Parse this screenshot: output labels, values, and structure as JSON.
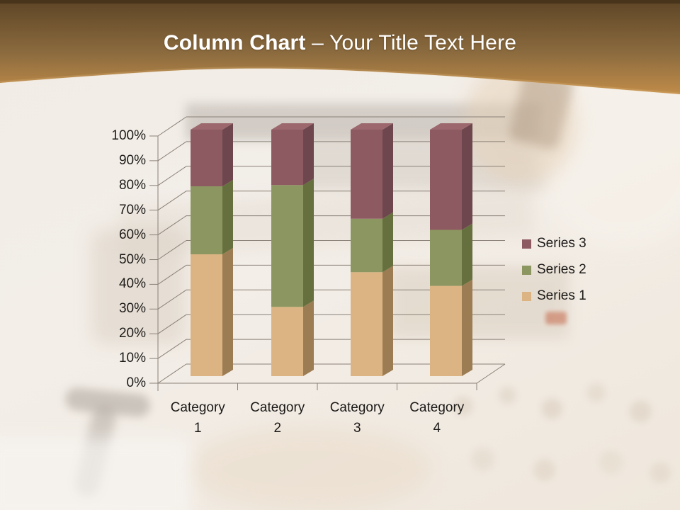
{
  "header": {
    "title_bold": "Column Chart",
    "title_separator": " – ",
    "title_rest": "Your Title Text Here",
    "top_strip_color": "#43311a",
    "gradient_top": "#5e4526",
    "gradient_mid": "#8a6a3e",
    "gradient_bottom": "#c08c49",
    "text_color": "#ffffff"
  },
  "chart_data": {
    "type": "bar",
    "subtype": "3d-100-percent-stacked-column",
    "title": "",
    "xlabel": "",
    "ylabel": "",
    "categories": [
      "Category 1",
      "Category 2",
      "Category 3",
      "Category 4"
    ],
    "series": [
      {
        "name": "Series 1",
        "values": [
          4.3,
          2.5,
          3.5,
          4.5
        ],
        "color_front": "#dcb483",
        "color_side": "#9c7c53",
        "color_top": "#e6c498"
      },
      {
        "name": "Series 2",
        "values": [
          2.4,
          4.4,
          1.8,
          2.8
        ],
        "color_front": "#8c9660",
        "color_side": "#65703e",
        "color_top": "#9aa46e"
      },
      {
        "name": "Series 3",
        "values": [
          2.0,
          2.0,
          3.0,
          5.0
        ],
        "color_front": "#8e5a62",
        "color_side": "#6e464d",
        "color_top": "#9c686e"
      }
    ],
    "segment_percents_by_category": [
      [
        49.4,
        27.6,
        23.0
      ],
      [
        28.1,
        49.4,
        22.5
      ],
      [
        42.2,
        21.7,
        36.1
      ],
      [
        36.6,
        22.8,
        40.6
      ]
    ],
    "y_axis": {
      "format": "percent",
      "min": 0,
      "max": 100,
      "ticks": [
        "0%",
        "10%",
        "20%",
        "30%",
        "40%",
        "50%",
        "60%",
        "70%",
        "80%",
        "90%",
        "100%"
      ]
    },
    "legend": {
      "position": "right",
      "order_top_to_bottom": [
        "Series 3",
        "Series 2",
        "Series 1"
      ]
    },
    "gridlines": true,
    "axis_color": "#8a8178",
    "text_color": "#1c1a18"
  }
}
